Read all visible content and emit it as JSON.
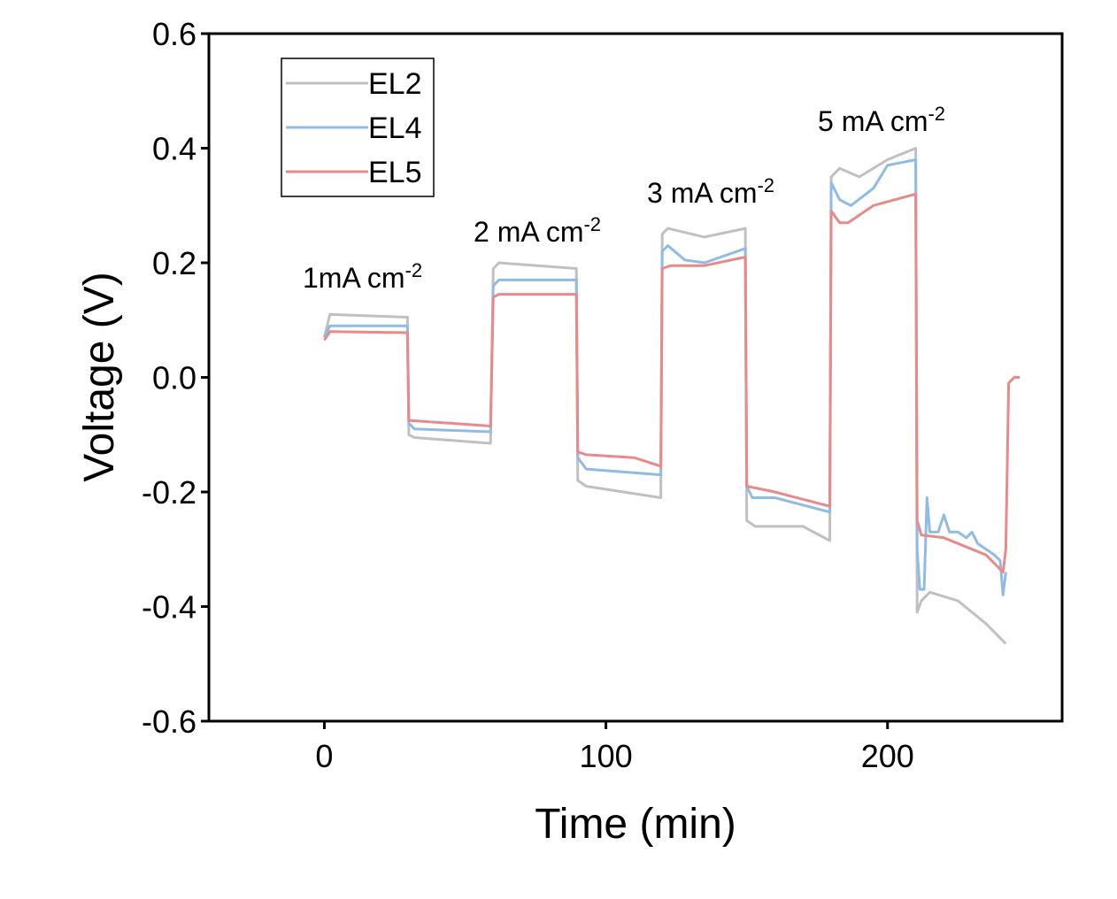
{
  "chart_data": {
    "type": "line",
    "x_label": "Time (min)",
    "y_label": "Voltage (V)",
    "xlim": [
      -41,
      262
    ],
    "ylim": [
      -0.6,
      0.6
    ],
    "xticks": [
      0,
      100,
      200
    ],
    "yticks": [
      0.6,
      0.4,
      0.2,
      {
        "value": 0,
        "label": "0.0"
      },
      -0.2,
      -0.4,
      -0.6
    ],
    "legend": "top-left",
    "annotations": [
      {
        "text": "1mA cm",
        "sup": "-2"
      },
      {
        "text": "2 mA cm",
        "sup": "-2"
      },
      {
        "text": "3 mA cm",
        "sup": "-2"
      },
      {
        "text": "5 mA cm",
        "sup": "-2"
      }
    ],
    "series": [
      {
        "name": "EL2",
        "color": "#c0c0c0",
        "x": [
          0,
          2,
          29.5,
          30,
          32,
          59,
          60,
          62,
          89.5,
          90,
          93,
          119.5,
          120,
          122,
          135,
          149.5,
          150,
          153,
          170,
          179.5,
          180,
          183,
          190,
          200,
          210,
          210.5,
          212,
          215,
          225,
          235,
          242
        ],
        "values": [
          0.07,
          0.11,
          0.105,
          -0.1,
          -0.105,
          -0.115,
          0.19,
          0.2,
          0.19,
          -0.18,
          -0.19,
          -0.21,
          0.25,
          0.26,
          0.245,
          0.26,
          -0.25,
          -0.26,
          -0.26,
          -0.285,
          0.35,
          0.365,
          0.35,
          0.38,
          0.4,
          -0.41,
          -0.39,
          -0.375,
          -0.39,
          -0.43,
          -0.465
        ]
      },
      {
        "name": "EL4",
        "color": "#8fbbe6",
        "x": [
          0,
          2,
          29.5,
          30,
          32,
          59,
          60,
          62,
          89.5,
          90,
          93,
          119.5,
          120,
          122,
          128,
          135,
          149.5,
          150,
          152,
          160,
          179.5,
          180,
          183,
          187,
          195,
          200,
          210,
          210.5,
          211.5,
          213,
          214,
          215,
          218,
          220,
          222,
          225,
          228,
          230,
          232,
          238,
          240,
          241,
          242
        ],
        "values": [
          0.07,
          0.09,
          0.09,
          -0.08,
          -0.09,
          -0.095,
          0.16,
          0.17,
          0.17,
          -0.14,
          -0.16,
          -0.17,
          0.22,
          0.23,
          0.205,
          0.2,
          0.225,
          -0.19,
          -0.21,
          -0.21,
          -0.235,
          0.34,
          0.31,
          0.3,
          0.33,
          0.37,
          0.38,
          -0.3,
          -0.37,
          -0.37,
          -0.21,
          -0.27,
          -0.27,
          -0.24,
          -0.27,
          -0.27,
          -0.28,
          -0.27,
          -0.29,
          -0.31,
          -0.32,
          -0.38,
          -0.34
        ]
      },
      {
        "name": "EL5",
        "color": "#e88a8a",
        "x": [
          0,
          2,
          29.5,
          30,
          59,
          60,
          62,
          89.5,
          90,
          93,
          110,
          119.5,
          120,
          123,
          135,
          149.5,
          150,
          160,
          179.5,
          180,
          183,
          186,
          195,
          210,
          210.5,
          212,
          220,
          235,
          241,
          242,
          243,
          245,
          247
        ],
        "values": [
          0.065,
          0.08,
          0.078,
          -0.075,
          -0.085,
          0.14,
          0.145,
          0.145,
          -0.13,
          -0.135,
          -0.14,
          -0.155,
          0.19,
          0.195,
          0.195,
          0.21,
          -0.19,
          -0.2,
          -0.225,
          0.29,
          0.27,
          0.27,
          0.3,
          0.32,
          -0.25,
          -0.275,
          -0.28,
          -0.31,
          -0.34,
          -0.3,
          -0.01,
          0.0,
          0.0
        ]
      }
    ]
  }
}
